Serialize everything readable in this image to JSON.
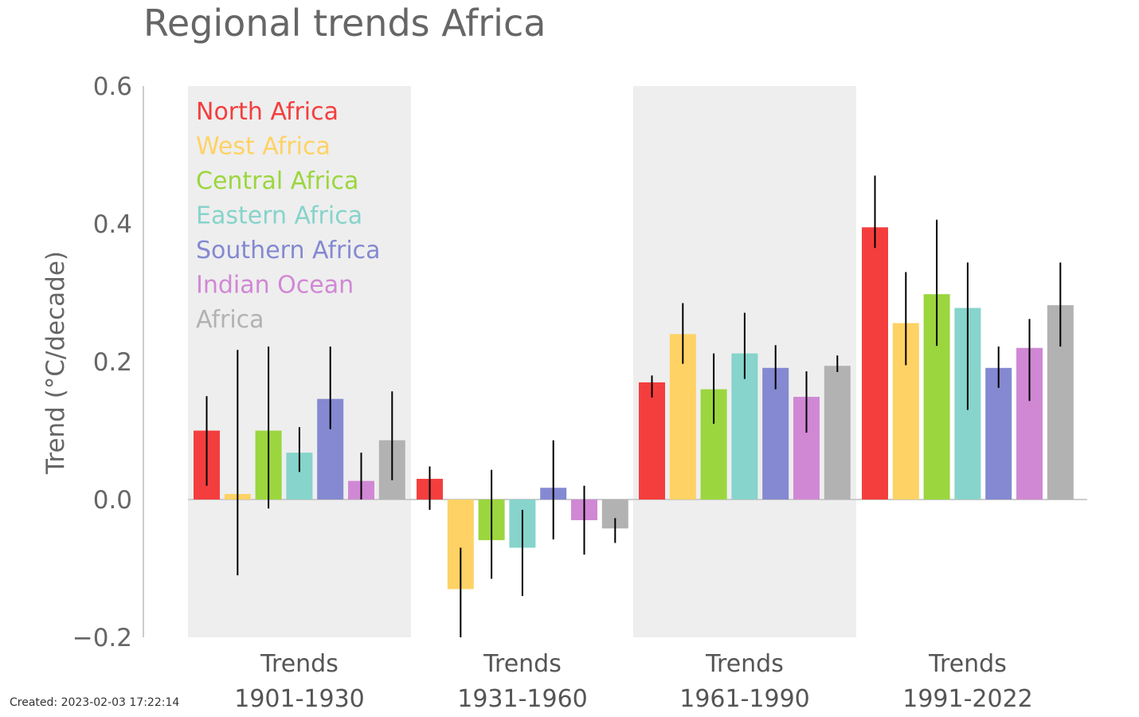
{
  "footer": {
    "created": "Created: 2023-02-03 17:22:14"
  },
  "chart_data": {
    "type": "bar",
    "title": "Regional trends Africa",
    "xlabel": "",
    "ylabel": "Trend (°C/decade)",
    "ylim": [
      -0.2,
      0.6
    ],
    "yticks": [
      -0.2,
      0.0,
      0.2,
      0.4,
      0.6
    ],
    "ytick_labels": [
      "−0.2",
      "0.0",
      "0.2",
      "0.4",
      "0.6"
    ],
    "grid": false,
    "legend_position": "top-left",
    "error_bars": true,
    "shaded_periods": [
      "1901-1930",
      "1961-1990"
    ],
    "categories": [
      {
        "line1": "Trends",
        "line2": "1901-1930"
      },
      {
        "line1": "Trends",
        "line2": "1931-1960"
      },
      {
        "line1": "Trends",
        "line2": "1961-1990"
      },
      {
        "line1": "Trends",
        "line2": "1991-2022"
      }
    ],
    "series": [
      {
        "name": "North Africa",
        "color": "#f43e3e",
        "values": [
          0.1,
          0.03,
          0.17,
          0.395
        ],
        "err_low": [
          0.02,
          -0.015,
          0.148,
          0.365
        ],
        "err_high": [
          0.15,
          0.048,
          0.18,
          0.47
        ]
      },
      {
        "name": "West Africa",
        "color": "#fed264",
        "values": [
          0.008,
          -0.13,
          0.24,
          0.256
        ],
        "err_low": [
          -0.11,
          -0.2,
          0.197,
          0.195
        ],
        "err_high": [
          0.217,
          -0.07,
          0.285,
          0.33
        ]
      },
      {
        "name": "Central Africa",
        "color": "#9bd63e",
        "values": [
          0.1,
          -0.059,
          0.16,
          0.298
        ],
        "err_low": [
          -0.013,
          -0.115,
          0.11,
          0.223
        ],
        "err_high": [
          0.222,
          0.043,
          0.212,
          0.406
        ]
      },
      {
        "name": "Eastern Africa",
        "color": "#86d4cb",
        "values": [
          0.068,
          -0.07,
          0.212,
          0.278
        ],
        "err_low": [
          0.04,
          -0.14,
          0.175,
          0.13
        ],
        "err_high": [
          0.105,
          -0.015,
          0.271,
          0.344
        ]
      },
      {
        "name": "Southern Africa",
        "color": "#8489d1",
        "values": [
          0.146,
          0.017,
          0.191,
          0.191
        ],
        "err_low": [
          0.102,
          -0.058,
          0.16,
          0.162
        ],
        "err_high": [
          0.222,
          0.086,
          0.224,
          0.222
        ]
      },
      {
        "name": "Indian Ocean",
        "color": "#d088d4",
        "values": [
          0.027,
          -0.03,
          0.149,
          0.22
        ],
        "err_low": [
          0.0,
          -0.08,
          0.097,
          0.143
        ],
        "err_high": [
          0.068,
          0.02,
          0.186,
          0.262
        ]
      },
      {
        "name": "Africa",
        "color": "#b2b2b2",
        "values": [
          0.086,
          -0.042,
          0.194,
          0.282
        ],
        "err_low": [
          0.028,
          -0.063,
          0.185,
          0.222
        ],
        "err_high": [
          0.157,
          -0.027,
          0.209,
          0.344
        ]
      }
    ]
  }
}
